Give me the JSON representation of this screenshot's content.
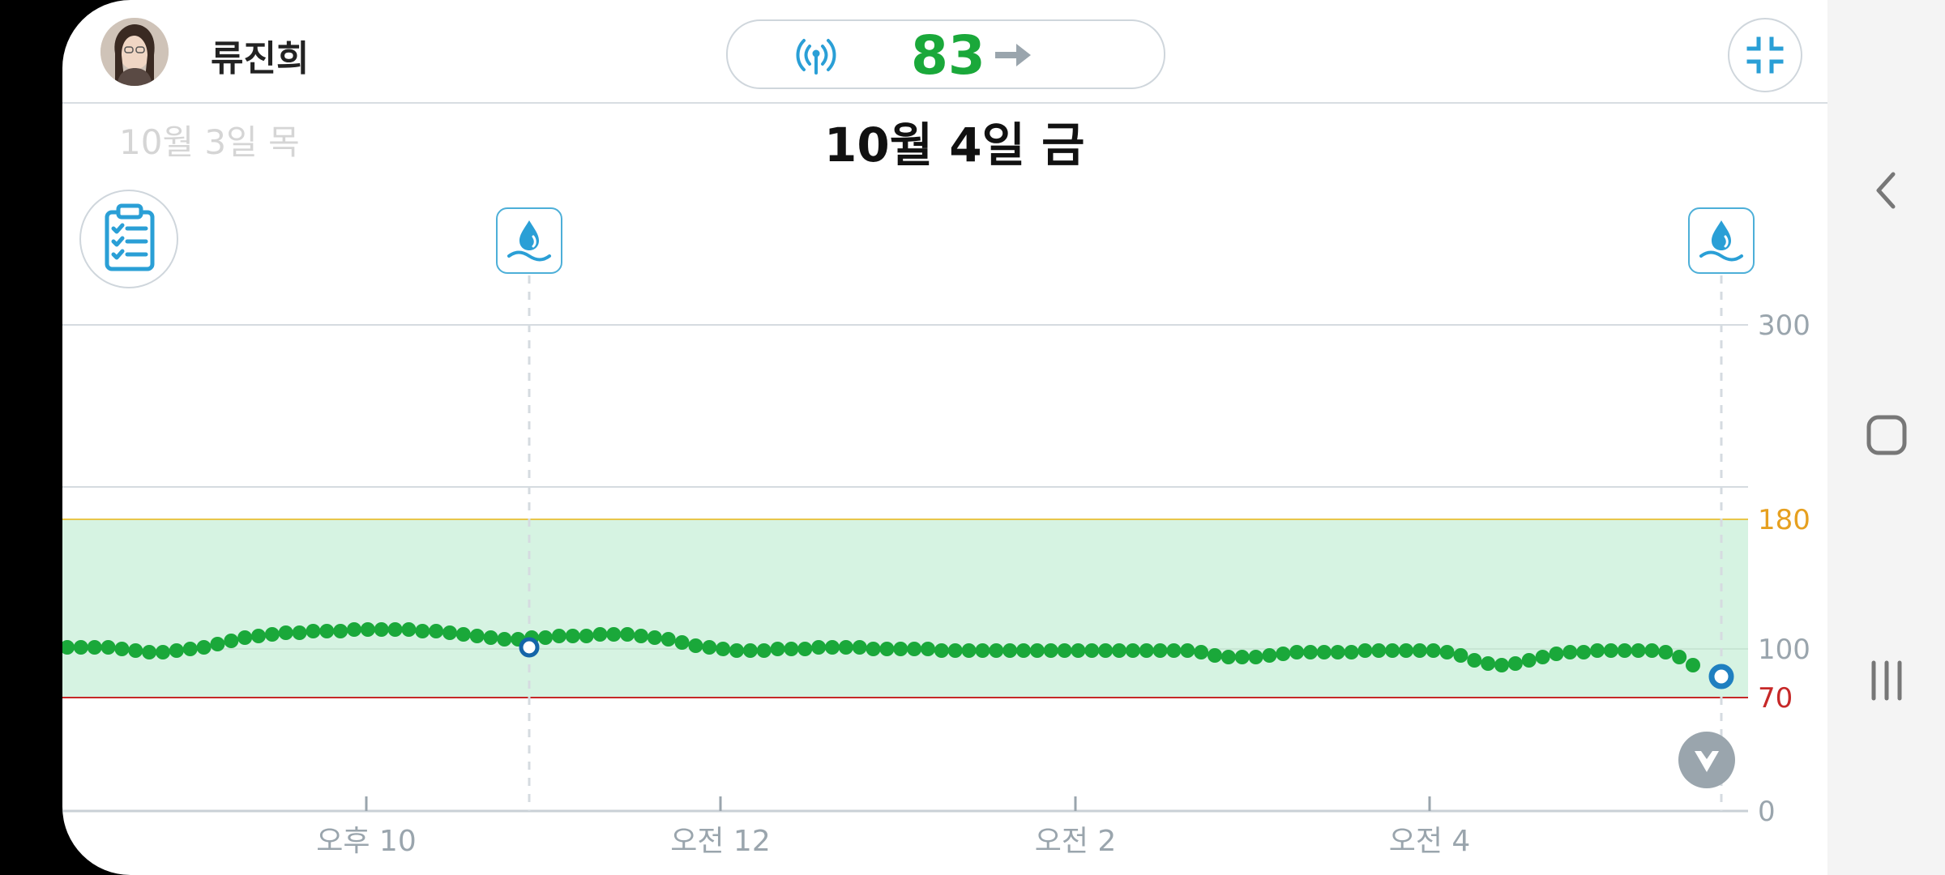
{
  "header": {
    "user_name": "류진희",
    "glucose_value": "83",
    "trend": "steady-arrow-icon",
    "signal": "signal-icon"
  },
  "dates": {
    "previous": "10월 3일 목",
    "current": "10월 4일 금"
  },
  "icons": {
    "log": "clipboard-checklist-icon",
    "marker": "water-drop-icon",
    "collapse": "collapse-icon",
    "scroll_end": "chevron-down-icon"
  },
  "colors": {
    "glucose": "#1aa83a",
    "target_range_fill": "#d6f3e2",
    "high_line": "#e8c64a",
    "low_line": "#c62828",
    "high_label": "#e6a020",
    "low_label": "#c62828",
    "accent": "#2a9fd6"
  },
  "chart_data": {
    "type": "scatter",
    "y_ticks": [
      "300",
      "180",
      "100",
      "70",
      "0"
    ],
    "x_ticks": [
      "오후 10",
      "오전 12",
      "오전 2",
      "오전 4"
    ],
    "ylim": [
      0,
      300
    ],
    "target_range": [
      70,
      180
    ],
    "series": [
      {
        "values": [
          101,
          101,
          101,
          101,
          100,
          99,
          98,
          98,
          99,
          100,
          101,
          103,
          105,
          107,
          108,
          109,
          110,
          110,
          111,
          111,
          111,
          112,
          112,
          112,
          112,
          112,
          111,
          111,
          110,
          109,
          108,
          107,
          106,
          106,
          107,
          107,
          108,
          108,
          108,
          109,
          109,
          109,
          108,
          107,
          106,
          104,
          102,
          101,
          100,
          99,
          99,
          99,
          100,
          100,
          100,
          101,
          101,
          101,
          101,
          100,
          100,
          100,
          100,
          100,
          99,
          99,
          99,
          99,
          99,
          99,
          99,
          99,
          99,
          99,
          99,
          99,
          99,
          99,
          99,
          99,
          99,
          99,
          99,
          98,
          96,
          95,
          95,
          95,
          96,
          97,
          98,
          98,
          98,
          98,
          98,
          99,
          99,
          99,
          99,
          99,
          99,
          98,
          96,
          93,
          91,
          90,
          91,
          93,
          95,
          97,
          98,
          98,
          99,
          99,
          99,
          99,
          99,
          98,
          95,
          90
        ]
      }
    ],
    "event_markers": [
      {
        "label": "water-drop-icon",
        "value": 101
      },
      {
        "label": "water-drop-icon",
        "value": 83
      }
    ],
    "grid": true
  },
  "navbar": {
    "back": "back-icon",
    "home": "home-icon",
    "recents": "recents-icon"
  }
}
